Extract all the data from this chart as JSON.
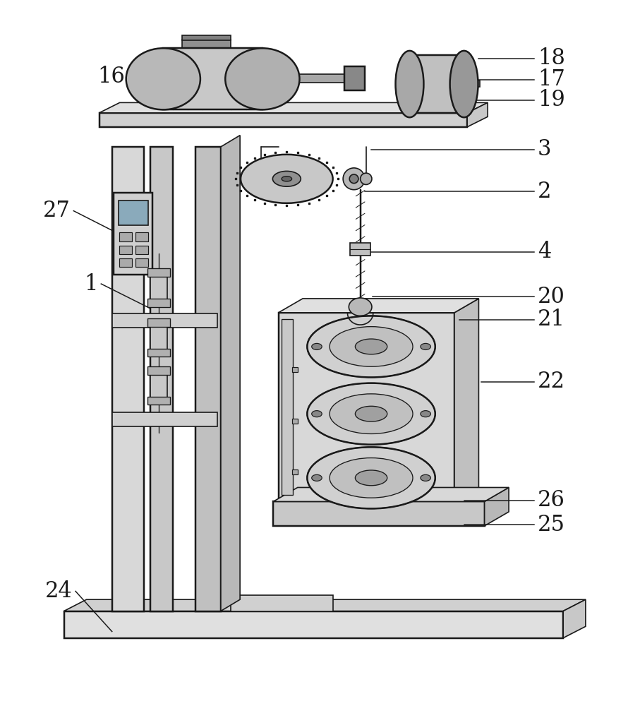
{
  "background": "#ffffff",
  "line_color": "#1a1a1a",
  "lw": 1.2,
  "label_fontsize": 22
}
